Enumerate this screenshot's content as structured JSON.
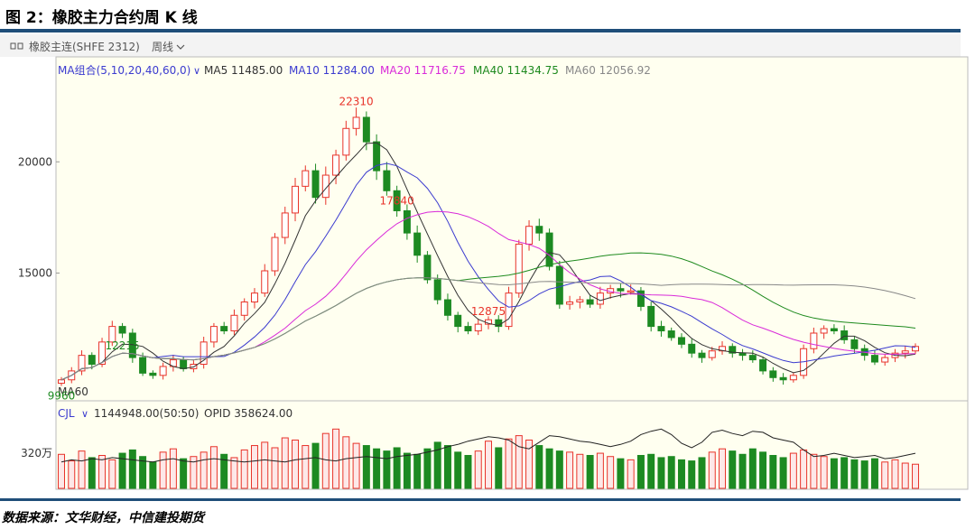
{
  "figure_title": "图 2：橡胶主力合约周 K 线",
  "source": "数据来源：文华财经，中信建投期货",
  "toolbar": {
    "contract_label": "橡胶主连(SHFE 2312)",
    "period_label": "周线",
    "icon": "chart-icon"
  },
  "colors": {
    "up": "#e8332a",
    "down": "#1d8a22",
    "ma5": "#333333",
    "ma10": "#3b3bcf",
    "ma20": "#d92ad9",
    "ma40": "#1e8a1e",
    "ma60": "#888888",
    "opid": "#222222",
    "rule": "#1f4e79"
  },
  "chart_data": [
    {
      "type": "candlestick",
      "title": "",
      "legend": {
        "group_label": "MA组合(5,10,20,40,60,0)",
        "items": [
          {
            "name": "MA5",
            "value": "11485.00"
          },
          {
            "name": "MA10",
            "value": "11284.00"
          },
          {
            "name": "MA20",
            "value": "11716.75"
          },
          {
            "name": "MA40",
            "value": "11434.75"
          },
          {
            "name": "MA60",
            "value": "12056.92"
          }
        ]
      },
      "y_ticks": [
        "20000",
        "15000"
      ],
      "y_tick_values": [
        20000,
        15000
      ],
      "ylim": [
        9500,
        23500
      ],
      "x_label_left": "MA60",
      "annotations": [
        {
          "text": "22310",
          "value": 22310,
          "color": "red"
        },
        {
          "text": "17840",
          "value": 17840,
          "color": "red"
        },
        {
          "text": "12875",
          "value": 12875,
          "color": "red"
        },
        {
          "text": "12215",
          "value": 12215,
          "color": "green"
        },
        {
          "text": "9960",
          "value": 9960,
          "color": "green"
        }
      ],
      "close_path": [
        10200,
        10600,
        11300,
        10900,
        11900,
        12600,
        12300,
        11200,
        10500,
        10400,
        10800,
        11100,
        10700,
        10900,
        11900,
        12600,
        12400,
        13100,
        13700,
        14100,
        15100,
        16600,
        17700,
        18900,
        19600,
        18400,
        19400,
        20300,
        21500,
        22000,
        20900,
        19600,
        18700,
        17800,
        16800,
        15800,
        14700,
        13800,
        13100,
        12600,
        12400,
        12700,
        12900,
        12600,
        14100,
        16300,
        17100,
        16800,
        15300,
        13600,
        13700,
        13800,
        13600,
        14100,
        14300,
        14200,
        14200,
        13500,
        12600,
        12400,
        12100,
        11800,
        11400,
        11200,
        11500,
        11700,
        11400,
        11300,
        11100,
        10600,
        10300,
        10200,
        10400,
        11600,
        12300,
        12500,
        12400,
        12000,
        11600,
        11300,
        11000,
        11200,
        11400,
        11500,
        11700
      ]
    },
    {
      "type": "bar",
      "title": "",
      "legend": {
        "group_label": "CJL",
        "items": [
          {
            "name": "",
            "value": "1144948.00(50:50)"
          },
          {
            "name": "OPID",
            "value": "358624.00"
          }
        ]
      },
      "y_ticks": [
        "320万"
      ],
      "y_tick_values": [
        3200000
      ],
      "ylim": [
        0,
        6000000
      ],
      "volume": [
        3100000,
        2500000,
        3400000,
        2800000,
        3000000,
        2600000,
        3200000,
        3500000,
        2900000,
        2400000,
        3300000,
        3600000,
        2700000,
        2900000,
        3300000,
        3800000,
        3100000,
        2800000,
        3500000,
        3900000,
        4200000,
        3700000,
        4600000,
        4400000,
        3900000,
        4100000,
        5000000,
        5400000,
        4700000,
        4100000,
        3900000,
        3600000,
        3400000,
        3700000,
        3200000,
        3100000,
        3600000,
        4200000,
        3900000,
        3300000,
        3000000,
        3400000,
        4300000,
        3700000,
        4500000,
        4800000,
        4400000,
        3900000,
        3600000,
        3400000,
        3300000,
        3100000,
        3000000,
        3200000,
        2900000,
        2700000,
        2600000,
        3000000,
        3100000,
        2800000,
        2900000,
        2600000,
        2500000,
        2800000,
        3300000,
        3600000,
        3400000,
        3100000,
        3600000,
        3300000,
        3000000,
        2800000,
        3200000,
        3500000,
        3100000,
        2900000,
        2700000,
        2800000,
        2600000,
        2500000,
        2700000,
        2400000,
        2600000,
        2300000,
        2200000
      ],
      "opid": [
        2400000,
        2600000,
        2500000,
        2700000,
        2600000,
        2800000,
        2700000,
        2600000,
        2500000,
        2400000,
        2600000,
        2700000,
        2500000,
        2400000,
        2600000,
        2700000,
        2600000,
        2500000,
        2400000,
        2500000,
        2600000,
        2500000,
        2400000,
        2600000,
        2700000,
        2800000,
        2600000,
        2500000,
        2700000,
        2800000,
        2900000,
        2800000,
        2700000,
        2900000,
        3000000,
        3100000,
        3300000,
        3500000,
        3800000,
        4000000,
        4300000,
        4500000,
        4700000,
        4600000,
        4400000,
        3800000,
        3600000,
        4200000,
        4800000,
        4700000,
        4500000,
        4300000,
        4200000,
        4000000,
        3800000,
        4000000,
        4300000,
        4900000,
        5200000,
        5400000,
        4900000,
        4100000,
        3700000,
        4200000,
        5100000,
        5300000,
        5000000,
        4800000,
        5200000,
        5100000,
        4600000,
        4400000,
        4200000,
        3500000,
        2900000,
        3000000,
        3200000,
        3000000,
        2800000,
        2900000,
        3000000,
        2700000,
        2800000,
        3000000,
        3200000
      ]
    }
  ]
}
